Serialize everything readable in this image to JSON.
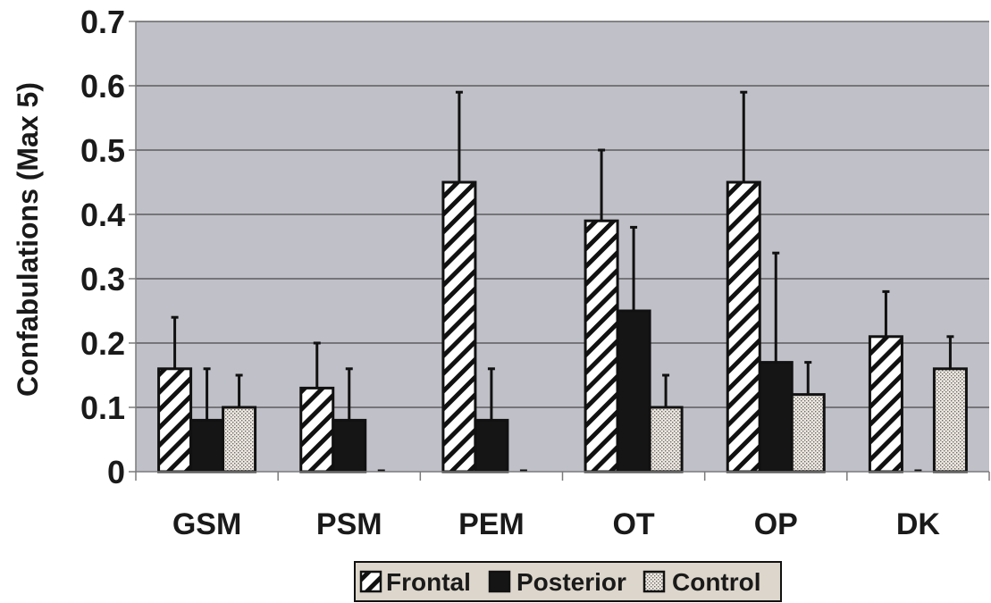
{
  "chart_data": {
    "type": "bar",
    "ylabel": "Confabulations (Max 5)",
    "xlabel": "",
    "ylim": [
      0,
      0.7
    ],
    "y_ticks": [
      "0",
      "0.1",
      "0.2",
      "0.3",
      "0.4",
      "0.5",
      "0.6",
      "0.7"
    ],
    "y_tick_values": [
      0,
      0.1,
      0.2,
      0.3,
      0.4,
      0.5,
      0.6,
      0.7
    ],
    "grid": true,
    "legend_position": "bottom-center",
    "categories": [
      "GSM",
      "PSM",
      "PEM",
      "OT",
      "OP",
      "DK"
    ],
    "series": [
      {
        "name": "Frontal",
        "pattern": "diagonal-hatch",
        "values": [
          0.16,
          0.13,
          0.45,
          0.39,
          0.45,
          0.21
        ],
        "errors": [
          0.08,
          0.07,
          0.14,
          0.11,
          0.14,
          0.07
        ]
      },
      {
        "name": "Posterior",
        "pattern": "solid-black",
        "values": [
          0.08,
          0.08,
          0.08,
          0.25,
          0.17,
          0.0
        ],
        "errors": [
          0.08,
          0.08,
          0.08,
          0.13,
          0.17,
          0.0
        ]
      },
      {
        "name": "Control",
        "pattern": "dotted",
        "values": [
          0.1,
          0.0,
          0.0,
          0.1,
          0.12,
          0.16
        ],
        "errors": [
          0.05,
          0.0,
          0.0,
          0.05,
          0.05,
          0.05
        ]
      }
    ],
    "colors": {
      "plot_background": "#c0c0c8",
      "bar_outline": "#111111",
      "posterior_fill": "#151515",
      "control_fill": "#e8e2da",
      "legend_background": "#ddd6cc"
    }
  }
}
